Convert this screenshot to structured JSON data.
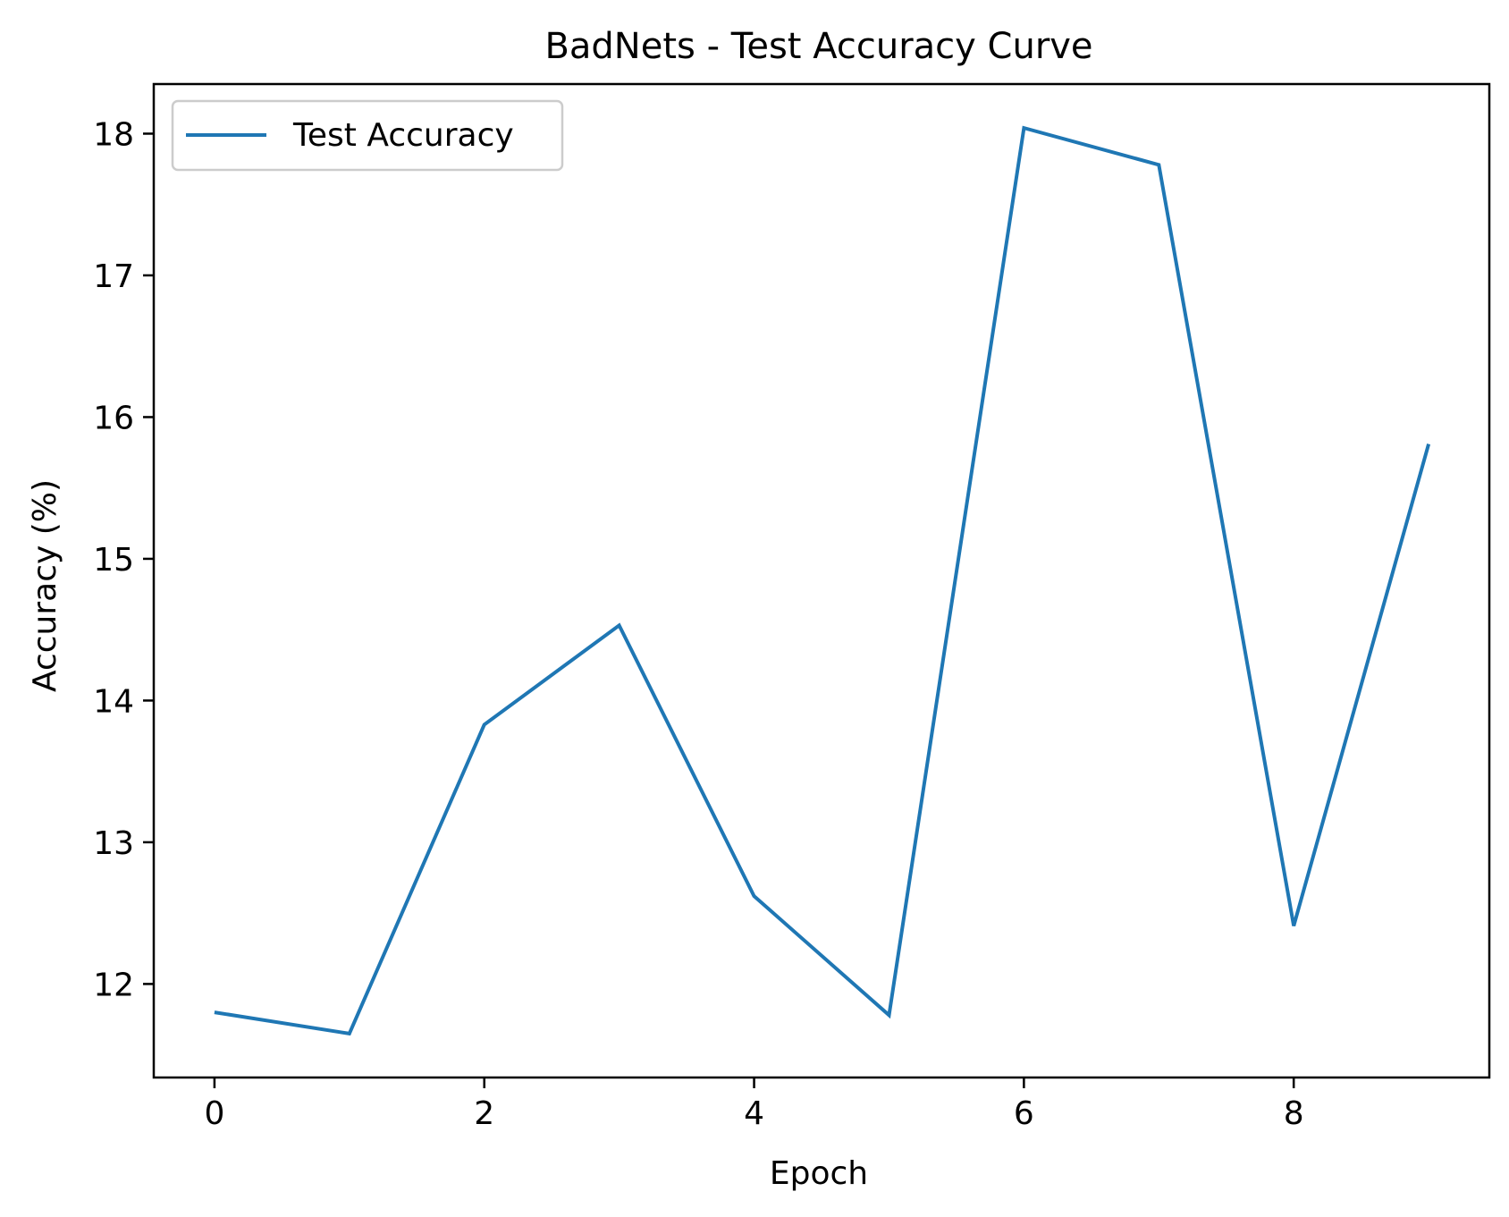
{
  "chart_data": {
    "type": "line",
    "title": "BadNets - Test Accuracy Curve",
    "xlabel": "Epoch",
    "ylabel": "Accuracy (%)",
    "x": [
      0,
      1,
      2,
      3,
      4,
      5,
      6,
      7,
      8,
      9
    ],
    "xlim": [
      -0.45,
      9.45
    ],
    "ylim": [
      11.34,
      18.35
    ],
    "xticks": [
      0,
      2,
      4,
      6,
      8
    ],
    "xtick_labels": [
      "0",
      "2",
      "4",
      "6",
      "8"
    ],
    "yticks": [
      12,
      13,
      14,
      15,
      16,
      17,
      18
    ],
    "ytick_labels": [
      "12",
      "13",
      "14",
      "15",
      "16",
      "17",
      "18"
    ],
    "grid": false,
    "legend_position": "upper left",
    "series": [
      {
        "name": "Test Accuracy",
        "color": "#1f77b4",
        "values": [
          11.8,
          11.65,
          13.83,
          14.53,
          12.62,
          11.78,
          18.04,
          17.78,
          12.41,
          15.81
        ]
      }
    ]
  }
}
